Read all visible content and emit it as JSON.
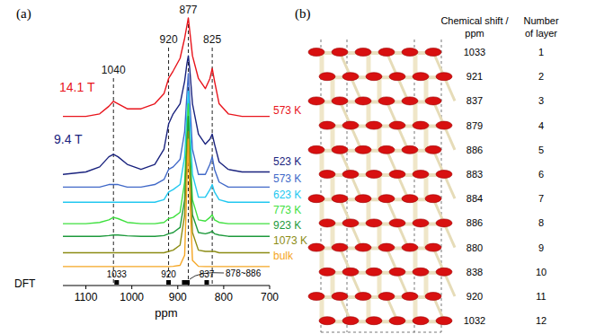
{
  "chart_data": {
    "type": "line",
    "title": "(a)",
    "x_label": "ppm",
    "xlim": [
      1150,
      700
    ],
    "xticks": [
      1100,
      1000,
      900,
      800,
      700
    ],
    "ylim": [
      -6,
      100
    ],
    "tick_labels": "x",
    "x": [
      1150,
      1100,
      1070,
      1050,
      1040,
      1030,
      1010,
      980,
      950,
      930,
      920,
      910,
      895,
      885,
      880,
      877,
      874,
      868,
      855,
      840,
      830,
      825,
      820,
      810,
      790,
      760,
      730,
      700
    ],
    "series": [
      {
        "name": "573 K",
        "color": "#e8141c",
        "values": [
          61,
          61,
          62,
          65,
          67,
          66,
          64,
          64,
          66,
          70,
          76,
          79,
          84,
          92,
          97,
          100,
          95,
          85,
          76,
          72,
          76,
          80,
          75,
          66,
          62,
          61,
          61,
          61
        ]
      },
      {
        "name": "523 K",
        "color": "#1a237e",
        "values": [
          38,
          39,
          41,
          45,
          46,
          45,
          42,
          40,
          42,
          48,
          58,
          62,
          66,
          75,
          82,
          85,
          80,
          66,
          54,
          50,
          52,
          54,
          50,
          43,
          40,
          39,
          39,
          39
        ]
      },
      {
        "name": "573 K",
        "color": "#4169c8",
        "values": [
          33,
          33,
          33,
          34,
          34,
          34,
          33,
          33,
          34,
          36,
          40,
          41,
          44,
          55,
          70,
          78,
          68,
          48,
          38,
          38,
          42,
          45,
          40,
          35,
          33,
          33,
          33,
          33
        ]
      },
      {
        "name": "623 K",
        "color": "#22c8f0",
        "values": [
          27,
          27,
          27,
          27,
          27,
          27,
          27,
          27,
          27,
          28,
          31,
          32,
          34,
          45,
          62,
          71,
          60,
          38,
          29,
          29,
          32,
          34,
          31,
          28,
          27,
          27,
          27,
          27
        ]
      },
      {
        "name": "773 K",
        "color": "#3ee03e",
        "values": [
          18.5,
          18.5,
          19,
          20,
          21,
          20.5,
          19,
          18.5,
          18.5,
          19,
          20.5,
          21,
          23,
          35,
          55,
          66,
          50,
          28,
          20,
          19.5,
          21,
          22,
          20,
          19,
          18.5,
          18.5,
          18.5,
          18.5
        ]
      },
      {
        "name": "923 K",
        "color": "#1e9a3c",
        "values": [
          13.5,
          13.5,
          13.5,
          13.8,
          14,
          14,
          13.7,
          13.5,
          13.5,
          13.8,
          14.5,
          15,
          17,
          28,
          50,
          61,
          45,
          22,
          15,
          14.5,
          15,
          15.5,
          14.5,
          14,
          13.5,
          13.5,
          13.5,
          13.5
        ]
      },
      {
        "name": "1073 K",
        "color": "#8c8c14",
        "values": [
          7,
          7,
          7,
          7,
          7,
          7,
          7,
          7,
          7,
          7,
          7.5,
          8,
          10,
          22,
          45,
          55,
          40,
          15,
          8,
          7.5,
          7.5,
          7.5,
          7.5,
          7,
          7,
          7,
          7,
          7
        ]
      },
      {
        "name": "bulk",
        "color": "#f5a623",
        "values": [
          1.5,
          1.5,
          1.5,
          1.5,
          1.5,
          1.5,
          1.5,
          1.5,
          1.5,
          1.5,
          1.5,
          1.6,
          2,
          6,
          35,
          52,
          30,
          4,
          1.6,
          1.5,
          1.5,
          1.5,
          1.5,
          1.5,
          1.5,
          1.5,
          1.5,
          1.5
        ]
      }
    ],
    "annotations": [
      {
        "text": "1040",
        "x": 1040
      },
      {
        "text": "920",
        "x": 920
      },
      {
        "text": "877",
        "x": 877
      },
      {
        "text": "825",
        "x": 825
      }
    ],
    "field_labels": [
      {
        "text": "14.1 T",
        "color": "#e8141c"
      },
      {
        "text": "9.4 T",
        "color": "#1a237e"
      }
    ],
    "dft": {
      "label": "DFT",
      "values": [
        1033,
        920,
        886,
        884,
        883,
        880,
        879,
        837
      ],
      "labels": [
        {
          "text": "1033",
          "x": 1033
        },
        {
          "text": "920",
          "x": 920
        },
        {
          "text": "837",
          "x": 837
        },
        {
          "text": "878~886",
          "x": 878
        }
      ]
    }
  },
  "panel_b": {
    "label": "(b)",
    "table": {
      "header": [
        [
          "Chemical shift /",
          "ppm"
        ],
        [
          "Number",
          "of layer"
        ]
      ],
      "rows": [
        [
          1033,
          1
        ],
        [
          921,
          2
        ],
        [
          837,
          3
        ],
        [
          879,
          4
        ],
        [
          886,
          5
        ],
        [
          883,
          6
        ],
        [
          884,
          7
        ],
        [
          886,
          8
        ],
        [
          880,
          9
        ],
        [
          838,
          10
        ],
        [
          920,
          11
        ],
        [
          1032,
          12
        ]
      ]
    }
  }
}
